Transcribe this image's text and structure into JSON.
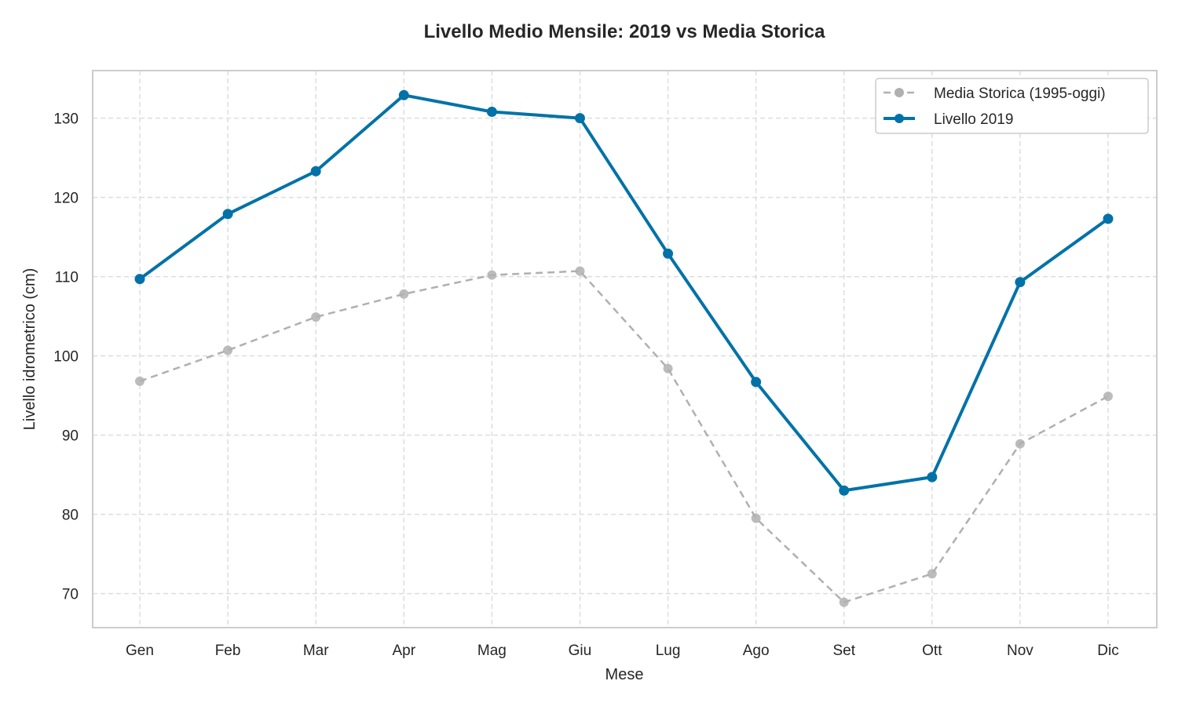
{
  "chart_data": {
    "type": "line",
    "title": "Livello Medio Mensile: 2019 vs Media Storica",
    "xlabel": "Mese",
    "ylabel": "Livello idrometrico (cm)",
    "categories": [
      "Gen",
      "Feb",
      "Mar",
      "Apr",
      "Mag",
      "Giu",
      "Lug",
      "Ago",
      "Set",
      "Ott",
      "Nov",
      "Dic"
    ],
    "ylim": [
      65.7,
      136.0
    ],
    "yticks": [
      70,
      80,
      90,
      100,
      110,
      120,
      130
    ],
    "grid": true,
    "legend_position": "top-right",
    "series": [
      {
        "name": "Media Storica (1995-oggi)",
        "color": "#b0b0b0",
        "style": "dashed",
        "values": [
          96.8,
          100.7,
          104.9,
          107.8,
          110.2,
          110.7,
          98.4,
          79.5,
          68.9,
          72.5,
          88.9,
          94.9
        ]
      },
      {
        "name": "Livello 2019",
        "color": "#0072a8",
        "style": "solid",
        "values": [
          109.7,
          117.9,
          123.3,
          132.9,
          130.8,
          130.0,
          112.9,
          96.7,
          83.0,
          84.7,
          109.3,
          117.3
        ]
      }
    ]
  }
}
